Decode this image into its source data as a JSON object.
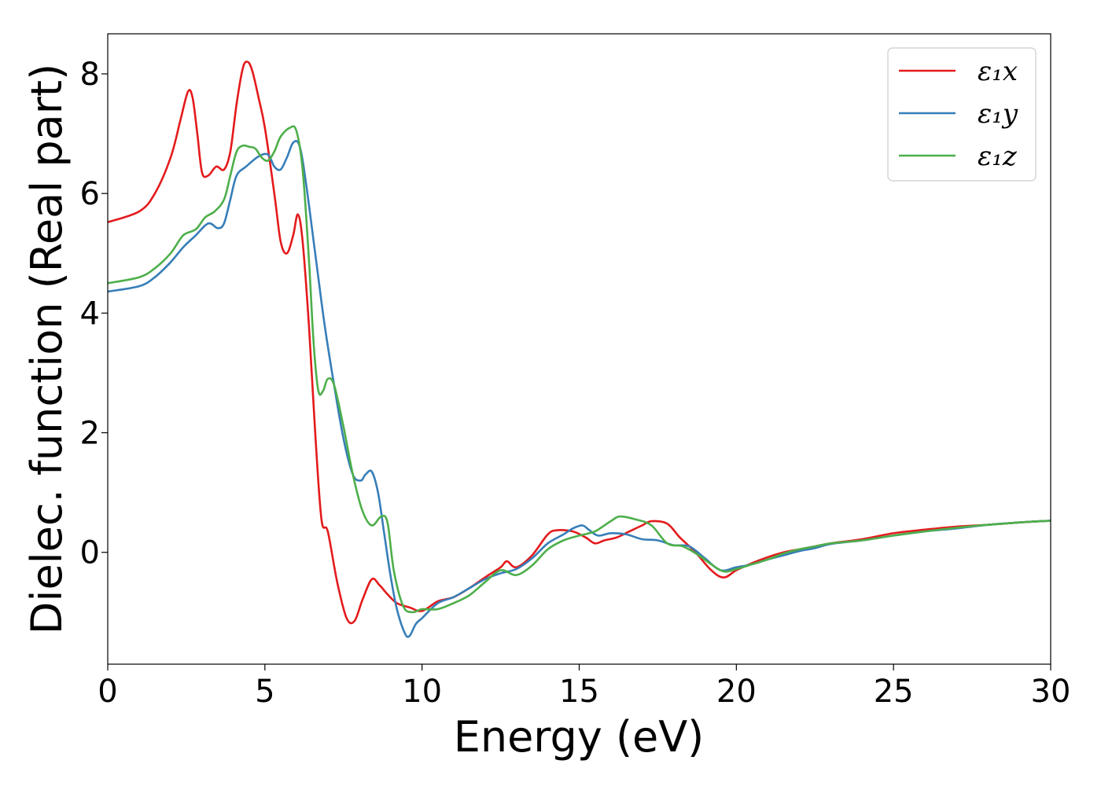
{
  "chart_data": {
    "type": "line",
    "title": "",
    "xlabel": "Energy (eV)",
    "ylabel": "Dielec. function (Real part)",
    "xlim": [
      0,
      30
    ],
    "ylim": [
      -1.87,
      8.67
    ],
    "xticks": [
      0,
      5,
      10,
      15,
      20,
      25,
      30
    ],
    "yticks": [
      0,
      2,
      4,
      6,
      8
    ],
    "grid": false,
    "legend_position": "top-right",
    "series": [
      {
        "name": "ε₁x",
        "color": "#e41a1c",
        "x": [
          0,
          1,
          1.5,
          2,
          2.3,
          2.55,
          2.7,
          2.85,
          3.0,
          3.2,
          3.45,
          3.7,
          3.9,
          4.1,
          4.3,
          4.45,
          4.6,
          4.8,
          5.0,
          5.3,
          5.5,
          5.7,
          5.9,
          6.05,
          6.2,
          6.4,
          6.6,
          6.8,
          7.0,
          7.3,
          7.6,
          7.85,
          8.1,
          8.4,
          8.65,
          8.9,
          9.2,
          9.6,
          10.0,
          10.5,
          11.0,
          11.5,
          12.0,
          12.5,
          12.7,
          13.0,
          13.5,
          14.0,
          14.3,
          14.8,
          15.2,
          15.5,
          15.8,
          16.2,
          16.6,
          17.0,
          17.3,
          17.8,
          18.2,
          18.7,
          19.2,
          19.6,
          20.0,
          20.5,
          21.0,
          21.5,
          22.0,
          22.5,
          23.0,
          24.0,
          25.0,
          26.0,
          27.0,
          28.0,
          29.0,
          30.0
        ],
        "y": [
          5.52,
          5.7,
          6.0,
          6.6,
          7.2,
          7.7,
          7.6,
          7.0,
          6.35,
          6.3,
          6.45,
          6.4,
          6.7,
          7.5,
          8.1,
          8.2,
          8.05,
          7.6,
          7.1,
          6.0,
          5.2,
          5.0,
          5.3,
          5.65,
          5.2,
          3.8,
          2.0,
          0.55,
          0.35,
          -0.5,
          -1.1,
          -1.15,
          -0.8,
          -0.45,
          -0.55,
          -0.7,
          -0.85,
          -0.92,
          -0.98,
          -0.82,
          -0.75,
          -0.6,
          -0.42,
          -0.25,
          -0.15,
          -0.25,
          -0.05,
          0.3,
          0.37,
          0.35,
          0.25,
          0.15,
          0.2,
          0.25,
          0.35,
          0.45,
          0.52,
          0.48,
          0.25,
          0.0,
          -0.3,
          -0.42,
          -0.3,
          -0.18,
          -0.08,
          0.0,
          0.05,
          0.1,
          0.15,
          0.22,
          0.32,
          0.38,
          0.43,
          0.46,
          0.5,
          0.53
        ]
      },
      {
        "name": "ε₁y",
        "color": "#377eb8",
        "x": [
          0,
          1,
          1.5,
          2,
          2.4,
          2.8,
          3.2,
          3.5,
          3.7,
          3.9,
          4.1,
          4.4,
          4.8,
          5.1,
          5.3,
          5.5,
          5.7,
          5.9,
          6.1,
          6.3,
          6.6,
          6.9,
          7.2,
          7.5,
          7.8,
          8.05,
          8.2,
          8.4,
          8.6,
          8.8,
          9.0,
          9.2,
          9.45,
          9.6,
          9.8,
          10.0,
          10.5,
          11.0,
          11.5,
          12.0,
          12.5,
          13.0,
          13.5,
          14.0,
          14.5,
          14.8,
          15.1,
          15.3,
          15.6,
          16.0,
          16.5,
          17.0,
          17.5,
          18.0,
          18.5,
          19.0,
          19.5,
          20.0,
          20.5,
          21.0,
          21.5,
          22.0,
          22.5,
          23.0,
          24.0,
          25.0,
          26.0,
          27.0,
          28.0,
          29.0,
          30.0
        ],
        "y": [
          4.36,
          4.45,
          4.6,
          4.85,
          5.1,
          5.3,
          5.5,
          5.42,
          5.5,
          5.9,
          6.3,
          6.45,
          6.62,
          6.65,
          6.45,
          6.4,
          6.6,
          6.85,
          6.8,
          6.2,
          5.0,
          3.8,
          2.8,
          1.9,
          1.3,
          1.2,
          1.3,
          1.35,
          1.0,
          0.3,
          -0.4,
          -0.95,
          -1.35,
          -1.4,
          -1.2,
          -1.1,
          -0.85,
          -0.75,
          -0.6,
          -0.45,
          -0.35,
          -0.28,
          -0.1,
          0.15,
          0.3,
          0.4,
          0.45,
          0.38,
          0.28,
          0.32,
          0.3,
          0.22,
          0.2,
          0.12,
          0.1,
          -0.1,
          -0.3,
          -0.25,
          -0.2,
          -0.12,
          -0.05,
          0.02,
          0.07,
          0.14,
          0.2,
          0.28,
          0.35,
          0.4,
          0.46,
          0.5,
          0.53
        ]
      },
      {
        "name": "ε₁z",
        "color": "#4daf4a",
        "x": [
          0,
          1,
          1.5,
          2,
          2.4,
          2.8,
          3.1,
          3.4,
          3.7,
          3.9,
          4.1,
          4.3,
          4.5,
          4.7,
          4.9,
          5.1,
          5.3,
          5.5,
          5.8,
          6.0,
          6.2,
          6.4,
          6.55,
          6.7,
          6.85,
          7.0,
          7.2,
          7.5,
          7.8,
          8.1,
          8.4,
          8.7,
          8.9,
          9.1,
          9.4,
          9.7,
          10.0,
          10.5,
          11.0,
          11.5,
          12.0,
          12.5,
          13.0,
          13.5,
          14.0,
          14.5,
          15.0,
          15.5,
          16.0,
          16.3,
          16.8,
          17.3,
          17.8,
          18.3,
          18.8,
          19.2,
          19.6,
          20.0,
          20.5,
          21.0,
          21.5,
          22.0,
          22.5,
          23.0,
          24.0,
          25.0,
          26.0,
          27.0,
          28.0,
          29.0,
          30.0
        ],
        "y": [
          4.5,
          4.6,
          4.75,
          5.0,
          5.3,
          5.4,
          5.6,
          5.7,
          5.9,
          6.3,
          6.7,
          6.8,
          6.78,
          6.75,
          6.6,
          6.55,
          6.7,
          6.95,
          7.1,
          7.05,
          6.4,
          4.9,
          3.5,
          2.7,
          2.7,
          2.9,
          2.8,
          2.1,
          1.3,
          0.7,
          0.45,
          0.6,
          0.5,
          -0.3,
          -0.9,
          -1.0,
          -0.95,
          -0.95,
          -0.85,
          -0.72,
          -0.5,
          -0.3,
          -0.38,
          -0.22,
          0.05,
          0.2,
          0.28,
          0.35,
          0.52,
          0.6,
          0.55,
          0.45,
          0.15,
          0.1,
          -0.05,
          -0.2,
          -0.32,
          -0.28,
          -0.2,
          -0.12,
          -0.02,
          0.05,
          0.1,
          0.15,
          0.2,
          0.28,
          0.35,
          0.41,
          0.46,
          0.5,
          0.53
        ]
      }
    ]
  }
}
